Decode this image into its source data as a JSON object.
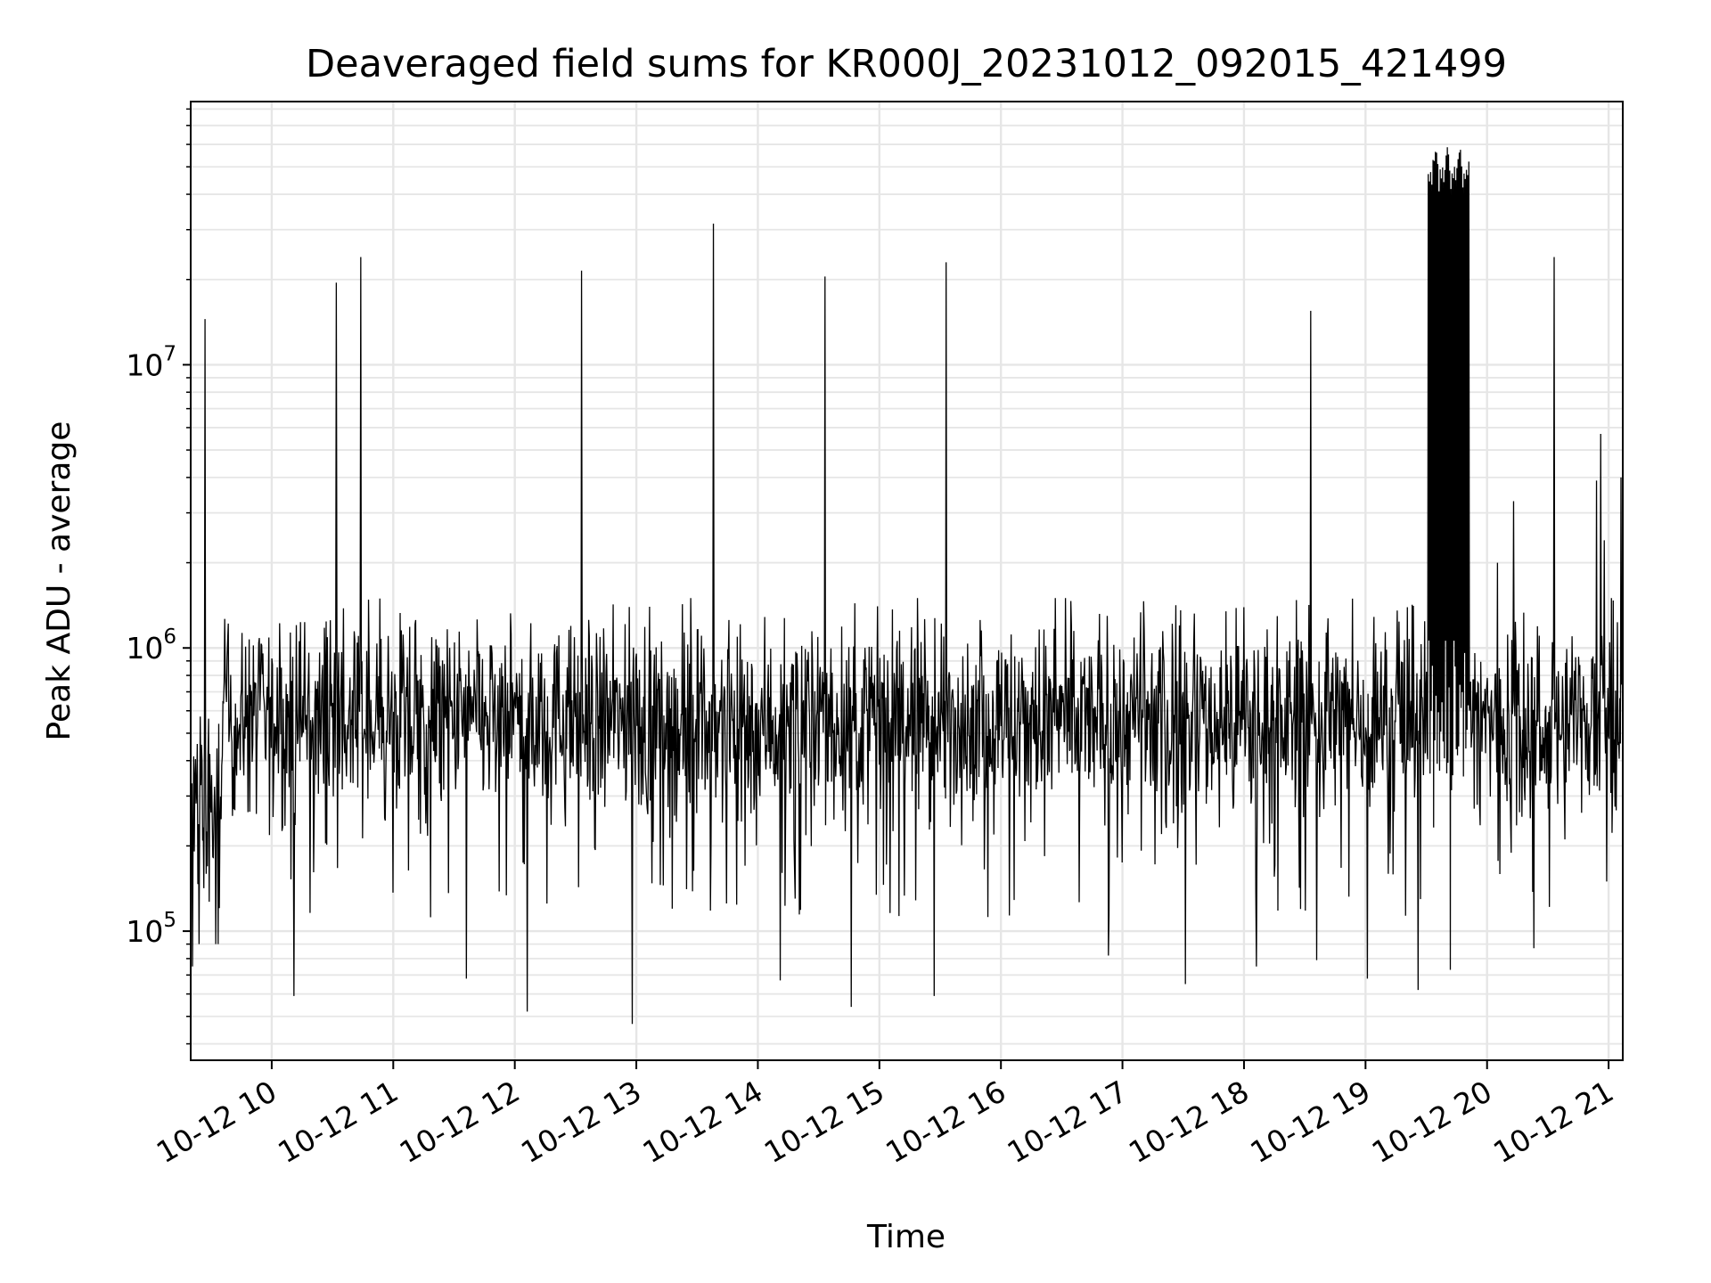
{
  "chart_data": {
    "type": "line",
    "title": "Deaveraged field sums for KR000J_20231012_092015_421499",
    "xlabel": "Time",
    "ylabel": "Peak ADU - average",
    "yscale": "log",
    "grid": true,
    "legend": "none",
    "line_color": "#000000",
    "x_range": [
      "10-12 09:20",
      "10-12 21:07"
    ],
    "y_range": [
      35000,
      85000000
    ],
    "x_ticks": [
      "10-12 10",
      "10-12 11",
      "10-12 12",
      "10-12 13",
      "10-12 14",
      "10-12 15",
      "10-12 16",
      "10-12 17",
      "10-12 18",
      "10-12 19",
      "10-12 20",
      "10-12 21"
    ],
    "y_ticks": [
      {
        "base": "10",
        "exp": "5",
        "value": 100000
      },
      {
        "base": "10",
        "exp": "6",
        "value": 1000000
      },
      {
        "base": "10",
        "exp": "7",
        "value": 10000000
      }
    ],
    "baseline": {
      "typical_value": 550000,
      "typical_min": 150000,
      "typical_max": 1000000,
      "start_segment": {
        "from": "10-12 09:20",
        "to": "10-12 09:35",
        "value": 250000
      }
    },
    "spikes": [
      {
        "x": "10-12 09:27",
        "y": 14500000
      },
      {
        "x": "10-12 10:32",
        "y": 19500000
      },
      {
        "x": "10-12 10:44",
        "y": 24000000
      },
      {
        "x": "10-12 12:33",
        "y": 21500000
      },
      {
        "x": "10-12 13:38",
        "y": 31500000
      },
      {
        "x": "10-12 14:33",
        "y": 20500000
      },
      {
        "x": "10-12 15:33",
        "y": 23000000
      },
      {
        "x": "10-12 18:33",
        "y": 15500000
      },
      {
        "x": "10-12 20:33",
        "y": 24000000
      }
    ],
    "burst": {
      "from": "10-12 19:31",
      "to": "10-12 19:51",
      "peak": 60000000,
      "points": [
        {
          "x": "10-12 19:32",
          "y": 49000000
        },
        {
          "x": "10-12 19:34",
          "y": 48000000
        },
        {
          "x": "10-12 19:36",
          "y": 50000000
        },
        {
          "x": "10-12 19:38",
          "y": 47000000
        },
        {
          "x": "10-12 19:40",
          "y": 53000000
        },
        {
          "x": "10-12 19:42",
          "y": 56000000
        },
        {
          "x": "10-12 19:44",
          "y": 59000000
        },
        {
          "x": "10-12 19:46",
          "y": 60000000
        },
        {
          "x": "10-12 19:48",
          "y": 52000000
        },
        {
          "x": "10-12 19:50",
          "y": 44000000
        }
      ]
    },
    "late_activity": [
      {
        "x": "10-12 20:13",
        "y": 3300000
      },
      {
        "x": "10-12 20:05",
        "y": 2000000
      },
      {
        "x": "10-12 20:54",
        "y": 3900000
      },
      {
        "x": "10-12 20:56",
        "y": 5700000
      },
      {
        "x": "10-12 20:58",
        "y": 2400000
      },
      {
        "x": "10-12 21:06",
        "y": 4000000
      }
    ],
    "dips": [
      {
        "x": "10-12 09:21",
        "y": 75000
      },
      {
        "x": "10-12 10:11",
        "y": 59000
      },
      {
        "x": "10-12 11:36",
        "y": 68000
      },
      {
        "x": "10-12 12:06",
        "y": 52000
      },
      {
        "x": "10-12 12:58",
        "y": 47000
      },
      {
        "x": "10-12 14:11",
        "y": 67000
      },
      {
        "x": "10-12 14:46",
        "y": 54000
      },
      {
        "x": "10-12 15:27",
        "y": 59000
      },
      {
        "x": "10-12 16:53",
        "y": 82000
      },
      {
        "x": "10-12 17:31",
        "y": 65000
      },
      {
        "x": "10-12 18:06",
        "y": 75000
      },
      {
        "x": "10-12 18:36",
        "y": 79000
      },
      {
        "x": "10-12 19:01",
        "y": 68000
      },
      {
        "x": "10-12 19:26",
        "y": 62000
      },
      {
        "x": "10-12 19:42",
        "y": 73000
      },
      {
        "x": "10-12 20:23",
        "y": 87000
      }
    ]
  }
}
